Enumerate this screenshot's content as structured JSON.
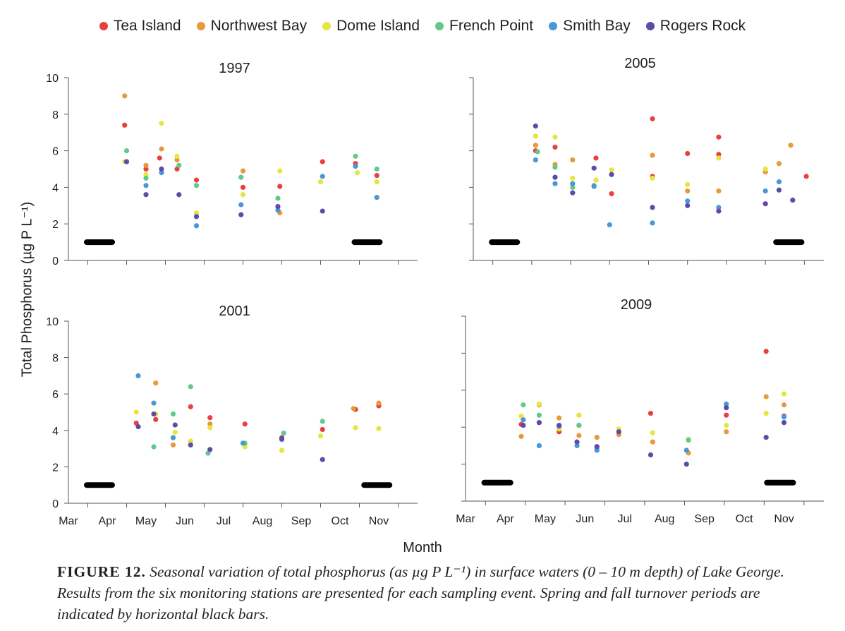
{
  "chart_data": {
    "type": "scatter",
    "ylabel": "Total Phosphorus (µg P L⁻¹)",
    "xlabel": "Month",
    "ylim": [
      0,
      10
    ],
    "yticks": [
      "0",
      "2",
      "4",
      "6",
      "8",
      "10"
    ],
    "months": [
      "Mar",
      "Apr",
      "May",
      "Jun",
      "Jul",
      "Aug",
      "Sep",
      "Oct",
      "Nov"
    ],
    "legend_placement": "top",
    "series_names": [
      "Tea Island",
      "Northwest Bay",
      "Dome Island",
      "French Point",
      "Smith Bay",
      "Rogers Rock"
    ],
    "series_colors": [
      "#e8413c",
      "#e8993c",
      "#e5e63e",
      "#5fc98e",
      "#4a97d6",
      "#5f4aa8"
    ],
    "turnover_color": "#000000",
    "panels": [
      {
        "title": "1997",
        "turnover_bars": [
          [
            3.4,
            4.2
          ],
          [
            10.3,
            11.1
          ]
        ],
        "series": [
          {
            "name": "Tea Island",
            "x": [
              4.45,
              5.0,
              5.35,
              5.8,
              6.3,
              7.5,
              8.45,
              9.55,
              10.4,
              10.95
            ],
            "y": [
              7.4,
              5.0,
              5.6,
              5.0,
              4.4,
              4.0,
              4.05,
              5.4,
              5.3,
              4.65
            ]
          },
          {
            "name": "Northwest Bay",
            "x": [
              4.45,
              5.0,
              5.4,
              5.8,
              7.5,
              8.45
            ],
            "y": [
              9.0,
              5.2,
              6.1,
              5.5,
              4.9,
              2.6
            ]
          },
          {
            "name": "Dome Island",
            "x": [
              4.45,
              5.0,
              5.4,
              5.8,
              6.3,
              7.5,
              8.45,
              9.5,
              10.45,
              10.95
            ],
            "y": [
              5.4,
              4.7,
              7.5,
              5.7,
              2.6,
              3.6,
              4.9,
              4.3,
              4.8,
              4.3
            ]
          },
          {
            "name": "French Point",
            "x": [
              4.5,
              5.0,
              5.85,
              6.3,
              7.45,
              8.4,
              10.4,
              10.95
            ],
            "y": [
              6.0,
              4.5,
              5.2,
              4.1,
              4.55,
              3.4,
              5.7,
              5.0
            ]
          },
          {
            "name": "Smith Bay",
            "x": [
              5.0,
              5.4,
              6.3,
              7.45,
              8.4,
              9.55,
              10.4,
              10.95
            ],
            "y": [
              4.1,
              4.8,
              1.9,
              3.05,
              2.75,
              4.6,
              5.15,
              3.45
            ]
          },
          {
            "name": "Rogers Rock",
            "x": [
              4.5,
              5.0,
              5.4,
              5.85,
              6.3,
              7.45,
              8.4,
              9.55
            ],
            "y": [
              5.4,
              3.6,
              5.0,
              3.6,
              2.4,
              2.5,
              2.95,
              2.7
            ]
          }
        ]
      },
      {
        "title": "2005",
        "turnover_bars": [
          [
            3.4,
            4.2
          ],
          [
            10.7,
            11.5
          ]
        ],
        "series": [
          {
            "name": "Tea Island",
            "x": [
              4.6,
              5.1,
              6.15,
              6.55,
              7.6,
              8.5,
              9.3
            ],
            "y": [
              6.0,
              6.2,
              5.6,
              3.65,
              7.75,
              5.85,
              6.75
            ]
          },
          {
            "name": "Tea Island",
            "x": [
              7.6,
              9.3,
              10.5,
              11.55
            ],
            "y": [
              4.6,
              5.8,
              4.85,
              4.6
            ]
          },
          {
            "name": "Northwest Bay",
            "x": [
              4.6,
              5.1,
              5.55,
              7.6,
              8.5,
              9.3,
              10.5,
              10.85,
              11.15
            ],
            "y": [
              6.3,
              5.25,
              5.5,
              5.75,
              3.8,
              3.8,
              4.85,
              5.3,
              6.3
            ]
          },
          {
            "name": "Dome Island",
            "x": [
              4.6,
              5.1,
              5.55,
              6.15,
              6.55,
              7.6,
              8.5,
              9.3,
              10.5
            ],
            "y": [
              6.8,
              6.75,
              4.5,
              4.4,
              4.95,
              4.5,
              4.15,
              5.6,
              5.0
            ]
          },
          {
            "name": "French Point",
            "x": [
              4.65,
              5.1,
              5.55,
              6.1
            ],
            "y": [
              5.95,
              5.1,
              4.0,
              4.1
            ]
          },
          {
            "name": "Smith Bay",
            "x": [
              4.6,
              5.1,
              5.55,
              6.1,
              6.5,
              7.6,
              8.5,
              9.3,
              10.5,
              10.85
            ],
            "y": [
              5.5,
              4.2,
              4.2,
              4.05,
              1.95,
              2.05,
              3.25,
              2.9,
              3.8,
              4.3
            ]
          },
          {
            "name": "Rogers Rock",
            "x": [
              4.6,
              5.1,
              5.55,
              6.1,
              6.55,
              7.6,
              8.5,
              9.3,
              10.5,
              10.85,
              11.2
            ],
            "y": [
              7.35,
              4.55,
              3.7,
              5.05,
              4.7,
              2.9,
              3.0,
              2.7,
              3.1,
              3.85,
              3.3
            ]
          }
        ]
      },
      {
        "title": "2001",
        "turnover_bars": [
          [
            3.4,
            4.2
          ],
          [
            10.55,
            11.35
          ]
        ],
        "series": [
          {
            "name": "Tea Island",
            "x": [
              4.75,
              5.25,
              6.15,
              6.65,
              7.55,
              8.5,
              9.55,
              10.4,
              11.0
            ],
            "y": [
              4.4,
              4.6,
              5.3,
              4.7,
              4.35,
              3.6,
              4.05,
              5.15,
              5.35
            ]
          },
          {
            "name": "Northwest Bay",
            "x": [
              5.25,
              5.7,
              6.15,
              6.65,
              10.35,
              11.0
            ],
            "y": [
              6.6,
              3.2,
              3.4,
              4.35,
              5.2,
              5.5
            ]
          },
          {
            "name": "Dome Island",
            "x": [
              4.75,
              5.25,
              5.75,
              6.15,
              6.65,
              7.55,
              8.5,
              9.5,
              10.4,
              11.0
            ],
            "y": [
              5.0,
              4.9,
              3.9,
              3.4,
              4.15,
              3.1,
              2.9,
              3.7,
              4.15,
              4.1
            ]
          },
          {
            "name": "French Point",
            "x": [
              5.2,
              5.7,
              6.15,
              6.6,
              7.55,
              8.55,
              9.55
            ],
            "y": [
              3.1,
              4.9,
              6.4,
              2.75,
              3.3,
              3.85,
              4.5
            ]
          },
          {
            "name": "Smith Bay",
            "x": [
              4.8,
              5.2,
              5.7,
              7.5,
              8.5
            ],
            "y": [
              7.0,
              5.5,
              3.6,
              3.3,
              3.5
            ]
          },
          {
            "name": "Rogers Rock",
            "x": [
              4.8,
              5.2,
              5.75,
              6.15,
              6.65,
              8.5,
              9.55
            ],
            "y": [
              4.2,
              4.9,
              4.3,
              3.2,
              2.95,
              3.55,
              2.4
            ]
          }
        ]
      },
      {
        "title": "2009",
        "turnover_bars": [
          [
            3.4,
            4.2
          ],
          [
            10.5,
            11.3
          ]
        ],
        "series": [
          {
            "name": "Tea Island",
            "x": [
              4.4,
              5.35,
              5.85,
              7.65,
              9.55,
              10.55,
              11.0
            ],
            "y": [
              4.15,
              3.75,
              4.1,
              4.75,
              4.65,
              8.1,
              4.6
            ]
          },
          {
            "name": "Northwest Bay",
            "x": [
              4.4,
              4.85,
              5.35,
              5.85,
              6.3,
              6.85,
              7.7,
              8.6,
              9.55,
              10.55,
              11.0
            ],
            "y": [
              3.5,
              5.2,
              4.5,
              3.55,
              3.45,
              3.6,
              3.2,
              2.6,
              3.75,
              5.65,
              5.2
            ]
          },
          {
            "name": "Dome Island",
            "x": [
              4.4,
              4.85,
              5.35,
              5.85,
              6.85,
              7.7,
              8.6,
              9.55,
              10.55,
              11.0
            ],
            "y": [
              4.6,
              5.25,
              3.9,
              4.65,
              3.9,
              3.7,
              3.35,
              4.1,
              4.75,
              5.8
            ]
          },
          {
            "name": "French Point",
            "x": [
              4.45,
              4.85,
              5.35,
              5.85,
              6.3,
              8.6
            ],
            "y": [
              5.2,
              4.65,
              4.05,
              4.1,
              2.85,
              3.3
            ]
          },
          {
            "name": "Smith Bay",
            "x": [
              4.45,
              4.85,
              5.35,
              5.8,
              6.3,
              8.55,
              9.55,
              11.0
            ],
            "y": [
              4.4,
              3.0,
              4.05,
              3.0,
              2.75,
              2.75,
              5.25,
              4.55
            ]
          },
          {
            "name": "Rogers Rock",
            "x": [
              4.45,
              4.85,
              5.35,
              5.8,
              6.3,
              6.85,
              7.65,
              8.55,
              9.55,
              10.55,
              11.0
            ],
            "y": [
              4.1,
              4.25,
              4.1,
              3.2,
              2.95,
              3.75,
              2.5,
              2.0,
              5.05,
              3.45,
              4.25
            ]
          }
        ]
      }
    ]
  },
  "caption": {
    "figure_label": "FIGURE 12.",
    "text": "Seasonal variation of total phosphorus (as µg P L⁻¹) in surface waters (0 – 10 m depth) of Lake George. Results from the six monitoring stations are presented for each sampling event. Spring and fall turnover periods are indicated by horizontal black bars."
  }
}
